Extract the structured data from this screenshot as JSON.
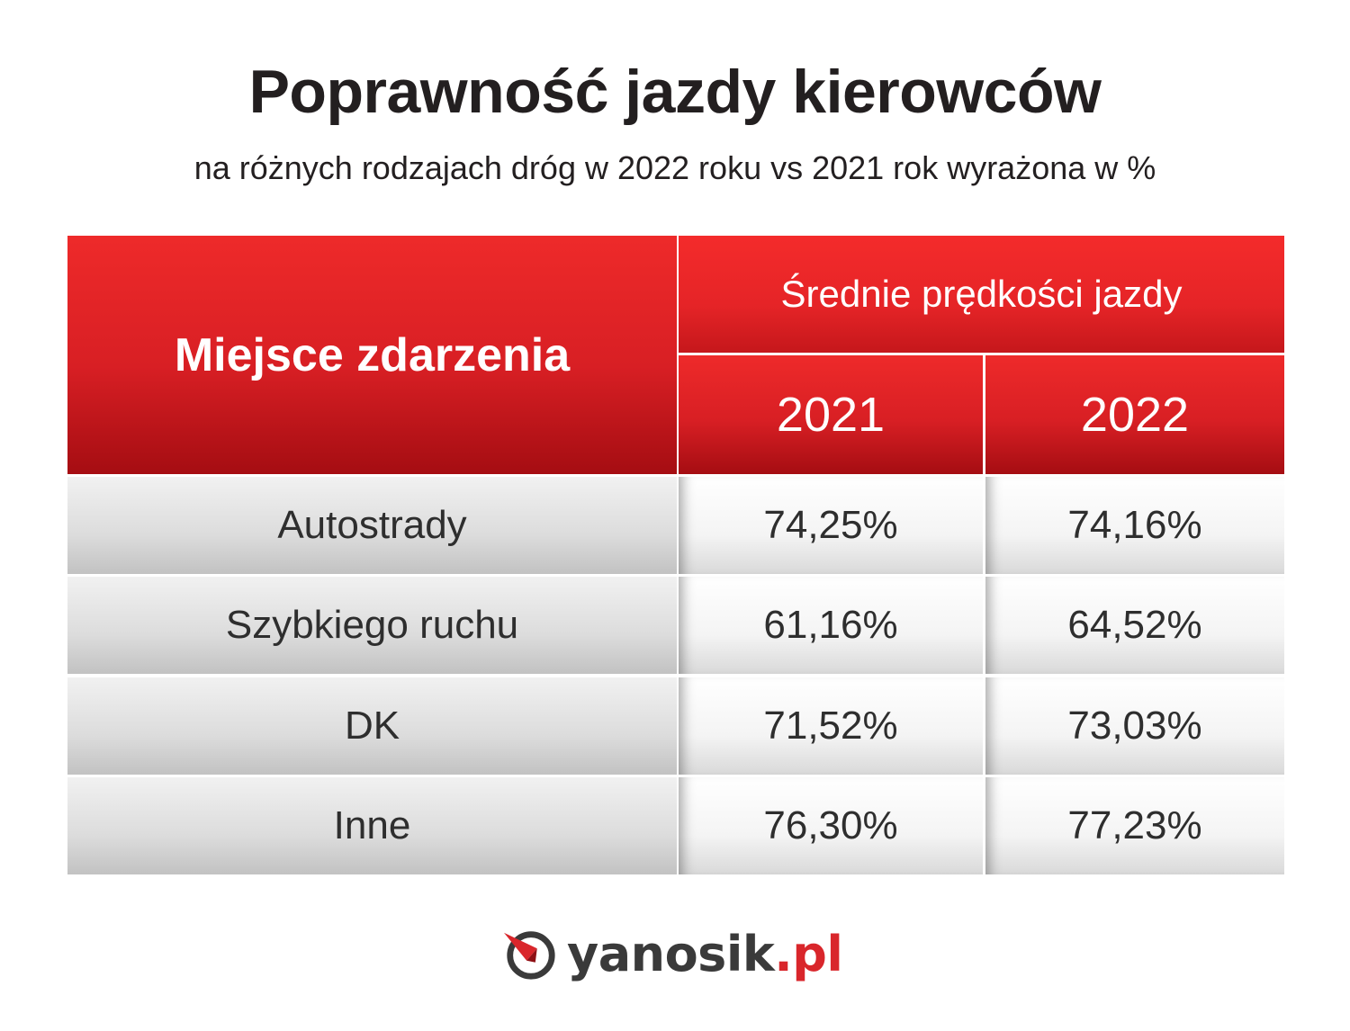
{
  "title": "Poprawność jazdy kierowców",
  "subtitle": "na różnych rodzajach dróg w 2022 roku vs 2021 rok wyrażona w %",
  "colors": {
    "header_red": "#e52427",
    "header_dark_red": "#a50d12",
    "row_gray": "#dcdcdc",
    "value_white": "#f4f4f4",
    "text": "#231f20",
    "logo_red": "#d9262b"
  },
  "chart_data": {
    "type": "table",
    "columns": {
      "place": "Miejsce zdarzenia",
      "group": "Średnie prędkości jazdy",
      "years": [
        "2021",
        "2022"
      ]
    },
    "rows": [
      {
        "label": "Autostrady",
        "values": [
          "74,25%",
          "74,16%"
        ]
      },
      {
        "label": "Szybkiego ruchu",
        "values": [
          "61,16%",
          "64,52%"
        ]
      },
      {
        "label": "DK",
        "values": [
          "71,52%",
          "73,03%"
        ]
      },
      {
        "label": "Inne",
        "values": [
          "76,30%",
          "77,23%"
        ]
      }
    ]
  },
  "logo": {
    "icon": "yanosik-compass-icon",
    "name": "yanosik",
    "domain": ".pl"
  }
}
